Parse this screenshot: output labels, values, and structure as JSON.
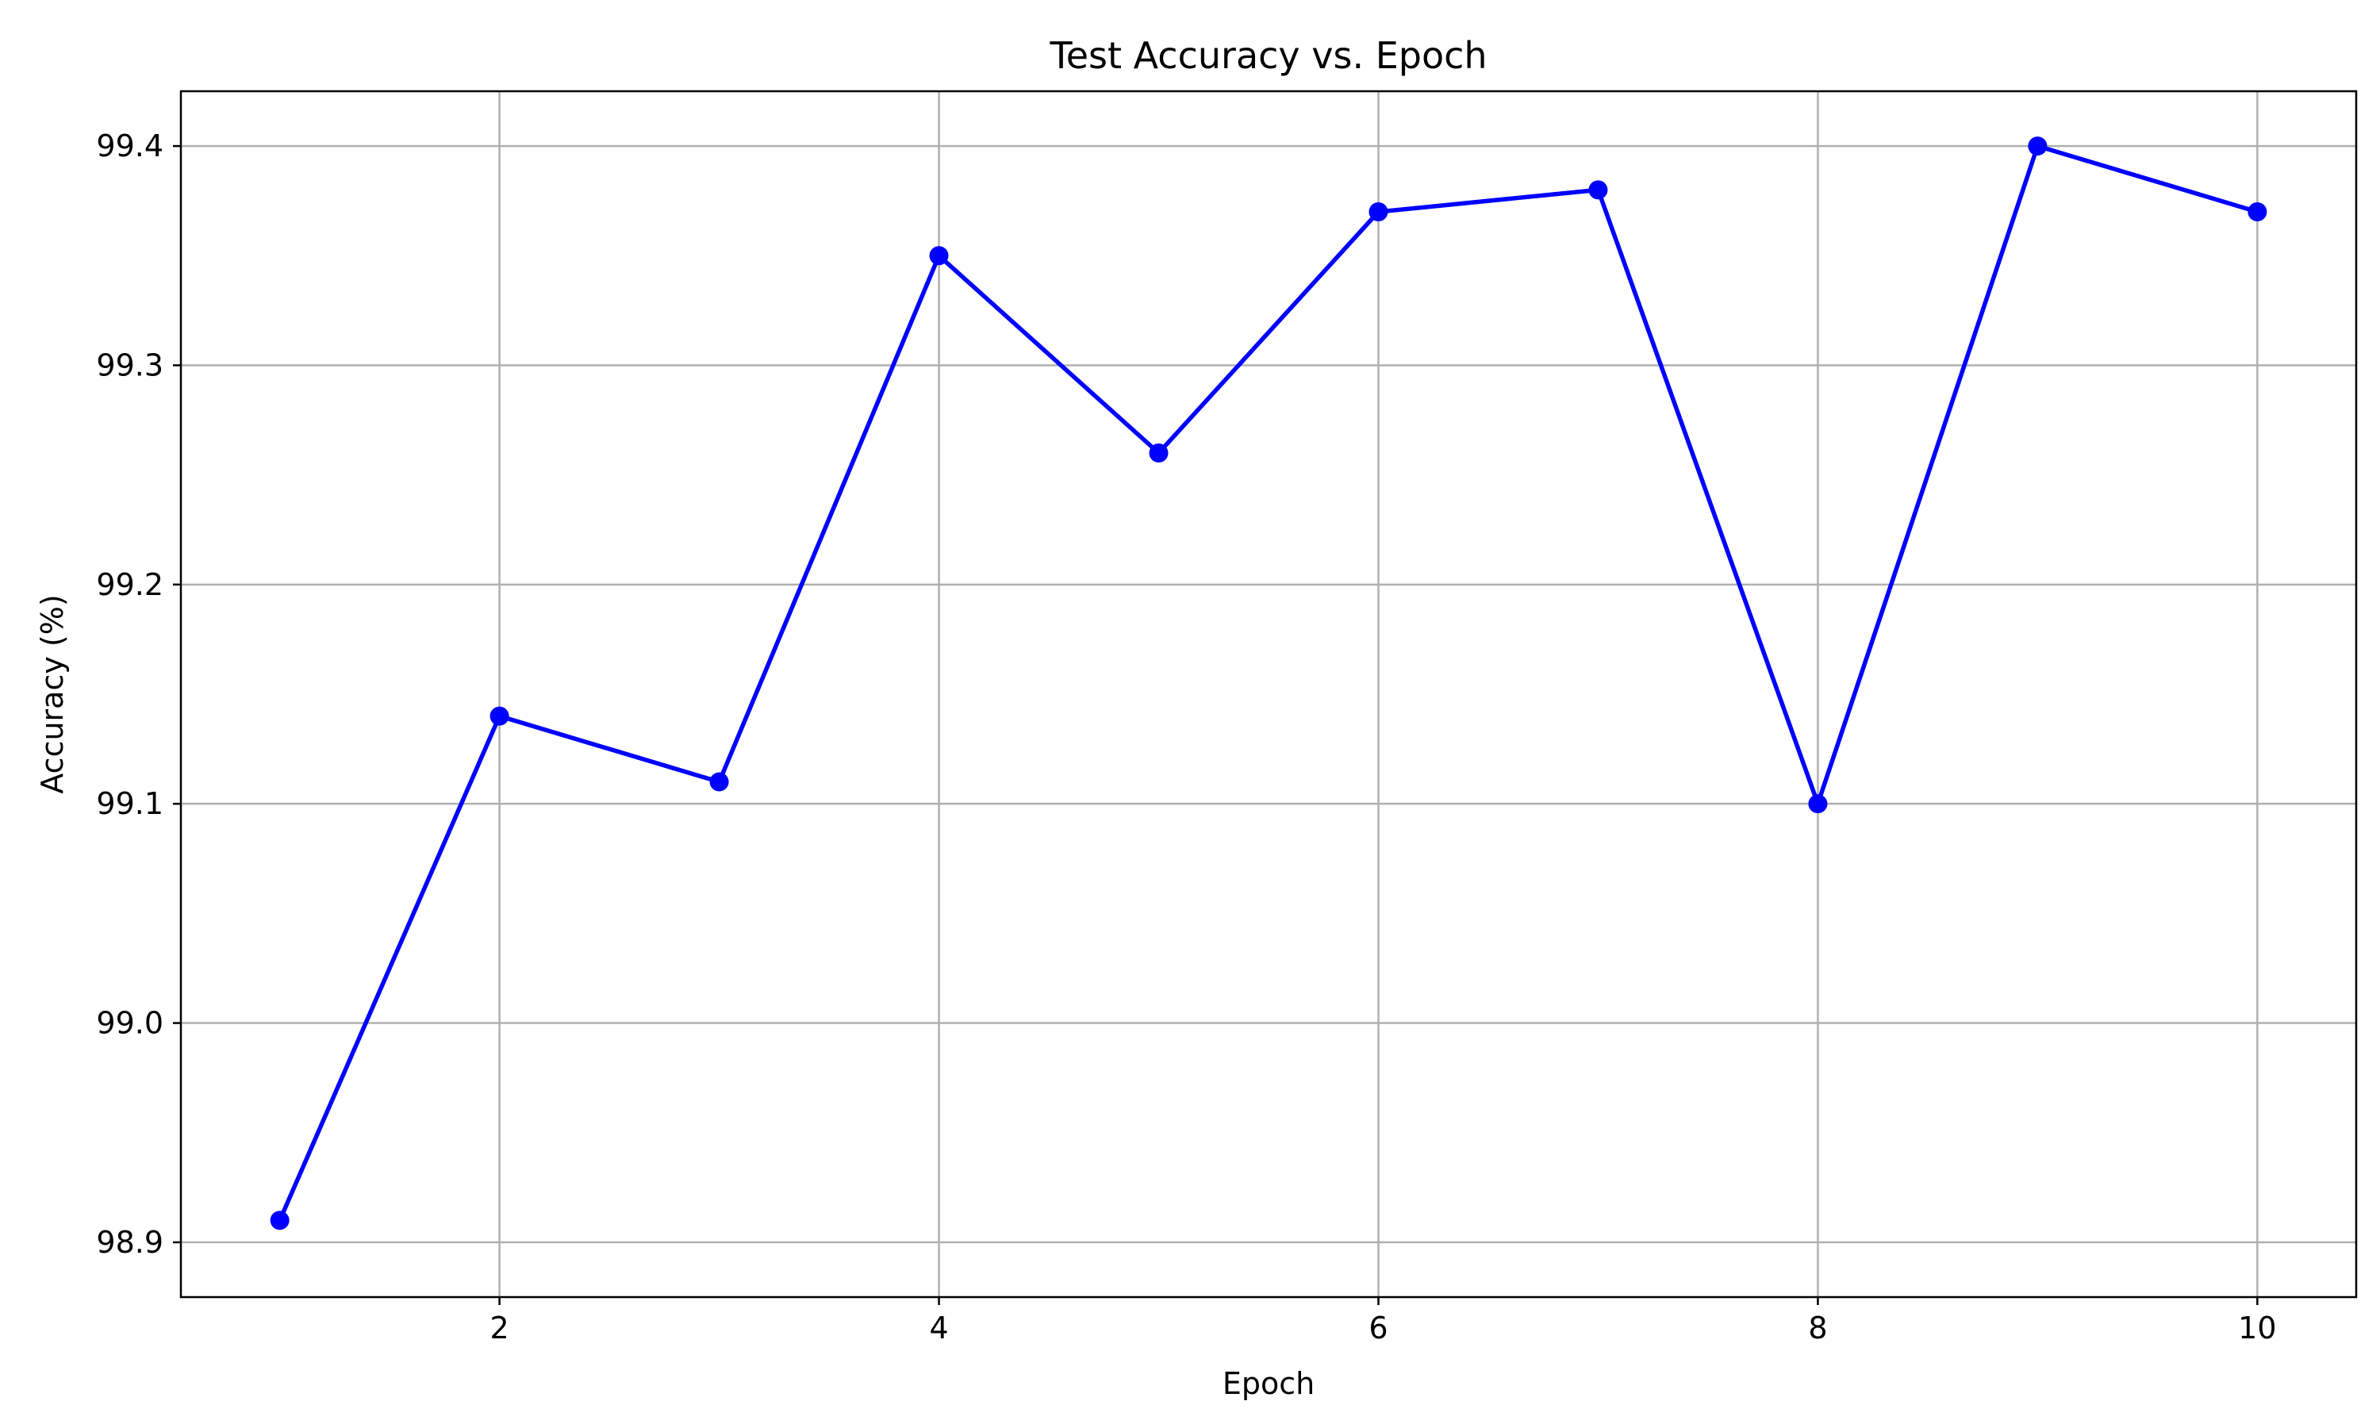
{
  "chart_data": {
    "type": "line",
    "title": "Test Accuracy vs. Epoch",
    "xlabel": "Epoch",
    "ylabel": "Accuracy (%)",
    "x": [
      1,
      2,
      3,
      4,
      5,
      6,
      7,
      8,
      9,
      10
    ],
    "series": [
      {
        "values": [
          98.91,
          99.14,
          99.11,
          99.35,
          99.26,
          99.37,
          99.38,
          99.1,
          99.4,
          99.37
        ],
        "color": "#0000ff",
        "marker": "circle"
      }
    ],
    "xlim": [
      0.55,
      10.45
    ],
    "ylim": [
      98.875,
      99.425
    ],
    "xticks": [
      2,
      4,
      6,
      8,
      10
    ],
    "xtick_labels": [
      "2",
      "4",
      "6",
      "8",
      "10"
    ],
    "yticks": [
      98.9,
      99.0,
      99.1,
      99.2,
      99.3,
      99.4
    ],
    "ytick_labels": [
      "98.9",
      "99.0",
      "99.1",
      "99.2",
      "99.3",
      "99.4"
    ],
    "grid": true,
    "grid_color": "#b0b0b0",
    "axis_color": "#000000",
    "background": "#ffffff"
  }
}
